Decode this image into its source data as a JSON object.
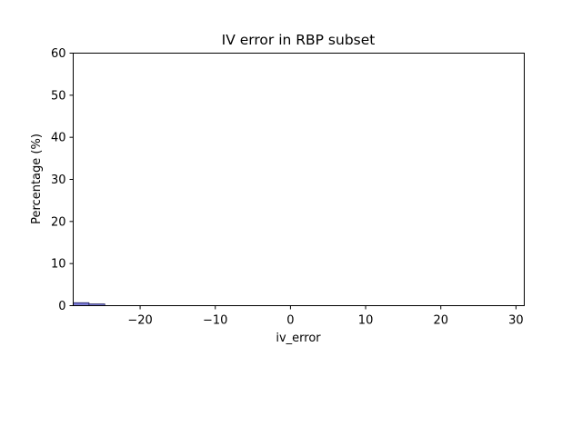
{
  "chart_data": {
    "type": "bar",
    "title": "IV error in RBP subset",
    "xlabel": "iv_error",
    "ylabel": "Percentage (%)",
    "xlim": [
      -28.9,
      31.1
    ],
    "ylim": [
      0,
      60
    ],
    "xticks": [
      -20,
      -10,
      0,
      10,
      20,
      30
    ],
    "xtick_labels": [
      "−20",
      "−10",
      "0",
      "10",
      "20",
      "30"
    ],
    "yticks": [
      0,
      10,
      20,
      30,
      40,
      50,
      60
    ],
    "ytick_labels": [
      "0",
      "10",
      "20",
      "30",
      "40",
      "50",
      "60"
    ],
    "grid": false,
    "bar_color": "#7b7bd6",
    "bar_edge_color": "#1f1f5e",
    "bins": [
      {
        "x0": -28.9,
        "x1": -26.8,
        "value": 0.7
      },
      {
        "x0": -26.8,
        "x1": -24.7,
        "value": 0.4
      }
    ]
  }
}
